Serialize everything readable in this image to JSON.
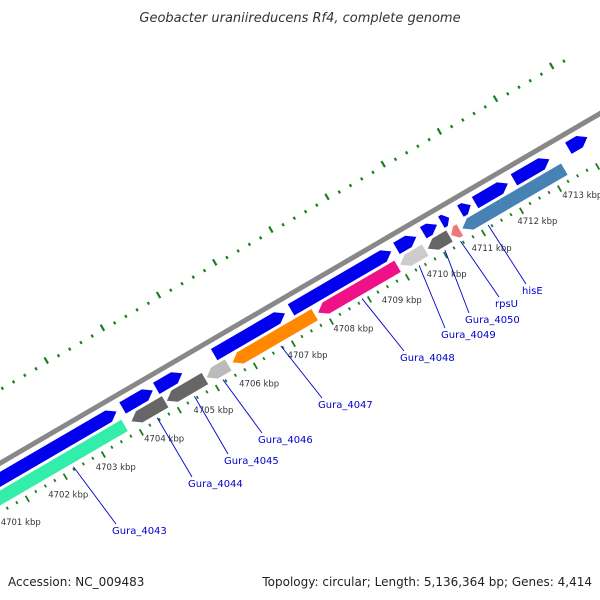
{
  "title": "Geobacter uraniireducens Rf4, complete genome",
  "footer": {
    "accession": "Accession: NC_009483",
    "summary": "Topology: circular; Length: 5,136,364 bp; Genes: 4,414"
  },
  "colors": {
    "backbone": "#888888",
    "forward_strand": "#0000ee",
    "ticks": "#1a7f1a",
    "label_link": "#0000cc"
  },
  "tick_labels": [
    "4701 kbp",
    "4702 kbp",
    "4703 kbp",
    "4704 kbp",
    "4705 kbp",
    "4706 kbp",
    "4707 kbp",
    "4708 kbp",
    "4709 kbp",
    "4710 kbp",
    "4711 kbp",
    "4712 kbp",
    "4713 kbp"
  ],
  "gene_labels": [
    "Gura_4043",
    "Gura_4044",
    "Gura_4045",
    "Gura_4046",
    "Gura_4047",
    "Gura_4048",
    "Gura_4049",
    "Gura_4050",
    "rpsU",
    "hisE"
  ],
  "reverse_features": [
    {
      "name": "Gura_4043",
      "color": "#33eeaa"
    },
    {
      "name": "Gura_4044",
      "color": "#666666"
    },
    {
      "name": "Gura_4045",
      "color": "#666666"
    },
    {
      "name": "Gura_4046",
      "color": "#bbbbbb"
    },
    {
      "name": "Gura_4047",
      "color": "#ff8800"
    },
    {
      "name": "Gura_4048",
      "color": "#ee1188"
    },
    {
      "name": "Gura_4049",
      "color": "#cccccc"
    },
    {
      "name": "Gura_4050",
      "color": "#666666"
    },
    {
      "name": "rpsU",
      "color": "#ee7777"
    },
    {
      "name": "hisE",
      "color": "#4682b4"
    }
  ]
}
